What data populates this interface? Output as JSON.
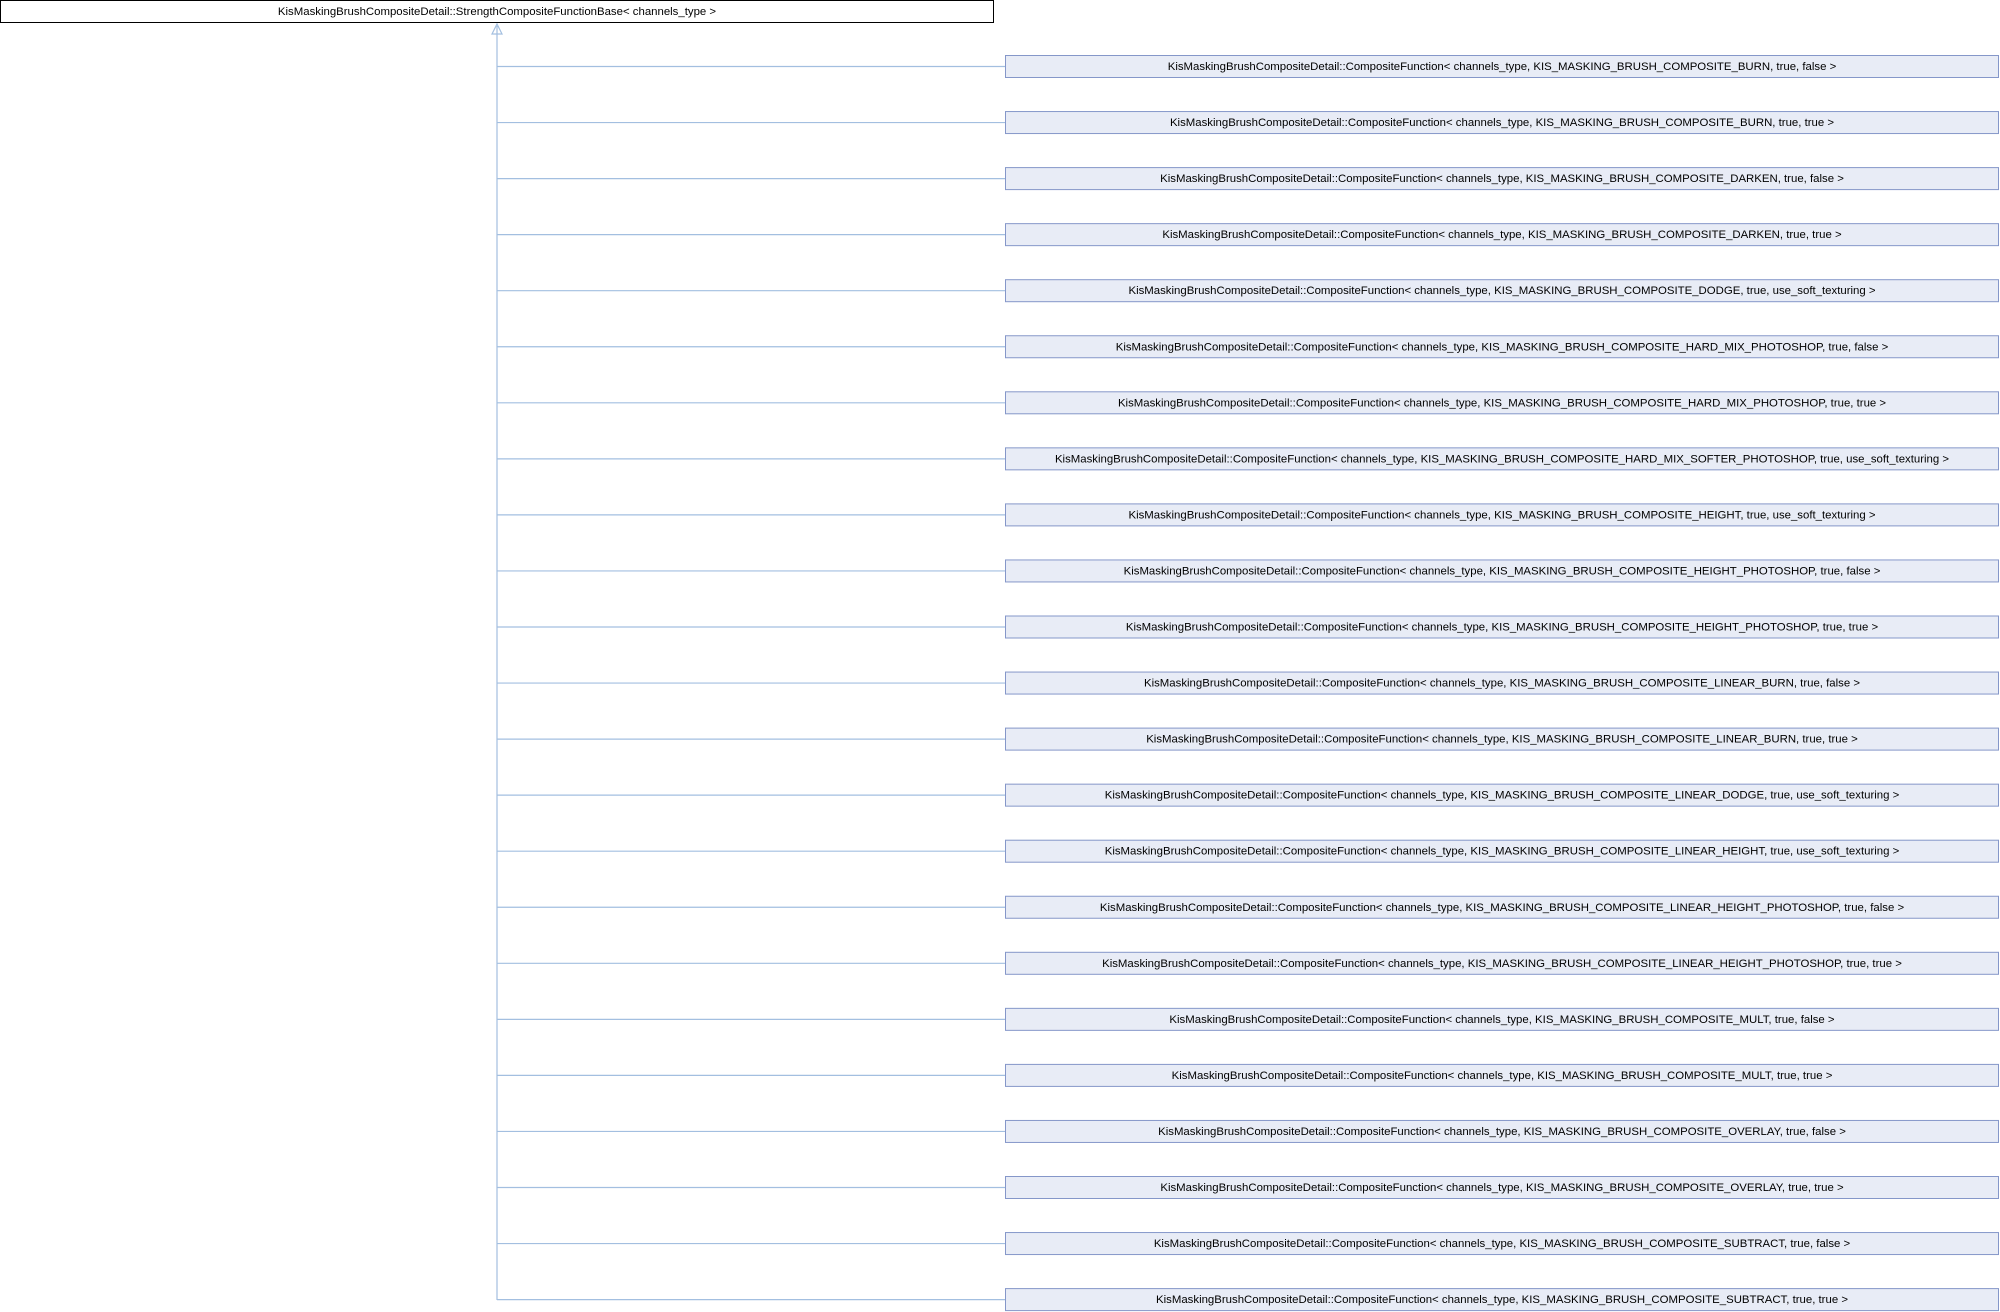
{
  "root": {
    "label": "KisMaskingBrushCompositeDetail::StrengthCompositeFunctionBase< channels_type >"
  },
  "nodes": [
    {
      "label": "KisMaskingBrushCompositeDetail::CompositeFunction< channels_type, KIS_MASKING_BRUSH_COMPOSITE_BURN, true, false >"
    },
    {
      "label": "KisMaskingBrushCompositeDetail::CompositeFunction< channels_type, KIS_MASKING_BRUSH_COMPOSITE_BURN, true, true >"
    },
    {
      "label": "KisMaskingBrushCompositeDetail::CompositeFunction< channels_type, KIS_MASKING_BRUSH_COMPOSITE_DARKEN, true, false >"
    },
    {
      "label": "KisMaskingBrushCompositeDetail::CompositeFunction< channels_type, KIS_MASKING_BRUSH_COMPOSITE_DARKEN, true, true >"
    },
    {
      "label": "KisMaskingBrushCompositeDetail::CompositeFunction< channels_type, KIS_MASKING_BRUSH_COMPOSITE_DODGE, true, use_soft_texturing >"
    },
    {
      "label": "KisMaskingBrushCompositeDetail::CompositeFunction< channels_type, KIS_MASKING_BRUSH_COMPOSITE_HARD_MIX_PHOTOSHOP, true, false >"
    },
    {
      "label": "KisMaskingBrushCompositeDetail::CompositeFunction< channels_type, KIS_MASKING_BRUSH_COMPOSITE_HARD_MIX_PHOTOSHOP, true, true >"
    },
    {
      "label": "KisMaskingBrushCompositeDetail::CompositeFunction< channels_type, KIS_MASKING_BRUSH_COMPOSITE_HARD_MIX_SOFTER_PHOTOSHOP, true, use_soft_texturing >"
    },
    {
      "label": "KisMaskingBrushCompositeDetail::CompositeFunction< channels_type, KIS_MASKING_BRUSH_COMPOSITE_HEIGHT, true, use_soft_texturing >"
    },
    {
      "label": "KisMaskingBrushCompositeDetail::CompositeFunction< channels_type, KIS_MASKING_BRUSH_COMPOSITE_HEIGHT_PHOTOSHOP, true, false >"
    },
    {
      "label": "KisMaskingBrushCompositeDetail::CompositeFunction< channels_type, KIS_MASKING_BRUSH_COMPOSITE_HEIGHT_PHOTOSHOP, true, true >"
    },
    {
      "label": "KisMaskingBrushCompositeDetail::CompositeFunction< channels_type, KIS_MASKING_BRUSH_COMPOSITE_LINEAR_BURN, true, false >"
    },
    {
      "label": "KisMaskingBrushCompositeDetail::CompositeFunction< channels_type, KIS_MASKING_BRUSH_COMPOSITE_LINEAR_BURN, true, true >"
    },
    {
      "label": "KisMaskingBrushCompositeDetail::CompositeFunction< channels_type, KIS_MASKING_BRUSH_COMPOSITE_LINEAR_DODGE, true, use_soft_texturing >"
    },
    {
      "label": "KisMaskingBrushCompositeDetail::CompositeFunction< channels_type, KIS_MASKING_BRUSH_COMPOSITE_LINEAR_HEIGHT, true, use_soft_texturing >"
    },
    {
      "label": "KisMaskingBrushCompositeDetail::CompositeFunction< channels_type, KIS_MASKING_BRUSH_COMPOSITE_LINEAR_HEIGHT_PHOTOSHOP, true, false >"
    },
    {
      "label": "KisMaskingBrushCompositeDetail::CompositeFunction< channels_type, KIS_MASKING_BRUSH_COMPOSITE_LINEAR_HEIGHT_PHOTOSHOP, true, true >"
    },
    {
      "label": "KisMaskingBrushCompositeDetail::CompositeFunction< channels_type, KIS_MASKING_BRUSH_COMPOSITE_MULT, true, false >"
    },
    {
      "label": "KisMaskingBrushCompositeDetail::CompositeFunction< channels_type, KIS_MASKING_BRUSH_COMPOSITE_MULT, true, true >"
    },
    {
      "label": "KisMaskingBrushCompositeDetail::CompositeFunction< channels_type, KIS_MASKING_BRUSH_COMPOSITE_OVERLAY, true, false >"
    },
    {
      "label": "KisMaskingBrushCompositeDetail::CompositeFunction< channels_type, KIS_MASKING_BRUSH_COMPOSITE_OVERLAY, true, true >"
    },
    {
      "label": "KisMaskingBrushCompositeDetail::CompositeFunction< channels_type, KIS_MASKING_BRUSH_COMPOSITE_SUBTRACT, true, false >"
    },
    {
      "label": "KisMaskingBrushCompositeDetail::CompositeFunction< channels_type, KIS_MASKING_BRUSH_COMPOSITE_SUBTRACT, true, true >"
    }
  ]
}
